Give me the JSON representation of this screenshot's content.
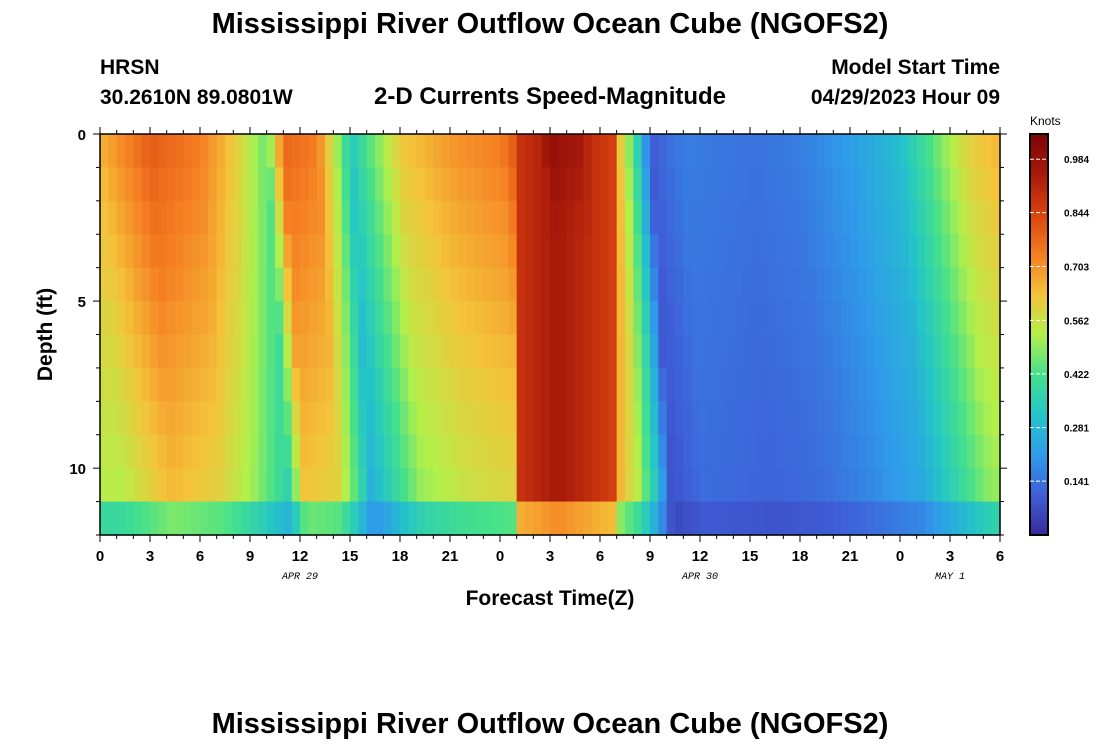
{
  "header": {
    "title": "Mississippi River Outflow Ocean Cube (NGOFS2)",
    "station_id": "HRSN",
    "station_coords": "30.2610N  89.0801W",
    "subtitle": "2-D Currents Speed-Magnitude",
    "start_label": "Model Start Time",
    "start_value": "04/29/2023 Hour 09"
  },
  "footer": {
    "title": "Mississippi River Outflow Ocean Cube (NGOFS2)"
  },
  "chart_data": {
    "type": "heatmap",
    "title": "2-D Currents Speed-Magnitude",
    "xlabel": "Forecast Time(Z)",
    "ylabel": "Depth (ft)",
    "x_range_hours": [
      0,
      54
    ],
    "y_range_ft": [
      0,
      12
    ],
    "x_tick_values": [
      0,
      3,
      6,
      9,
      12,
      15,
      18,
      21,
      24,
      27,
      30,
      33,
      36,
      39,
      42,
      45,
      48,
      51,
      54
    ],
    "x_tick_labels": [
      "0",
      "3",
      "6",
      "9",
      "12",
      "15",
      "18",
      "21",
      "0",
      "3",
      "6",
      "9",
      "12",
      "15",
      "18",
      "21",
      "0",
      "3",
      "6"
    ],
    "y_tick_values": [
      0,
      5,
      10
    ],
    "y_tick_labels": [
      "0",
      "5",
      "10"
    ],
    "date_labels": [
      {
        "hour": 12,
        "text": "APR 29"
      },
      {
        "hour": 36,
        "text": "APR 30"
      },
      {
        "hour": 51,
        "text": "MAY 1"
      }
    ],
    "colorbar": {
      "label": "Knots",
      "ticks": [
        "0.984",
        "0.844",
        "0.703",
        "0.562",
        "0.422",
        "0.281",
        "0.141"
      ],
      "tick_values": [
        0.984,
        0.844,
        0.703,
        0.562,
        0.422,
        0.281,
        0.141
      ],
      "vmin": 0.0,
      "vmax": 1.05,
      "colors": [
        "#3a2a9a",
        "#3f5fd8",
        "#2f9bea",
        "#24c5c8",
        "#44e08c",
        "#b3f04a",
        "#f4c33a",
        "#f57d22",
        "#d8430f",
        "#a8190b",
        "#7c0505"
      ]
    },
    "surface_profile_knots": [
      {
        "hour": 0,
        "knots": 0.66
      },
      {
        "hour": 3,
        "knots": 0.8
      },
      {
        "hour": 6,
        "knots": 0.74
      },
      {
        "hour": 8,
        "knots": 0.62
      },
      {
        "hour": 10,
        "knots": 0.45
      },
      {
        "hour": 11,
        "knots": 0.78
      },
      {
        "hour": 13,
        "knots": 0.74
      },
      {
        "hour": 14,
        "knots": 0.55
      },
      {
        "hour": 15,
        "knots": 0.33
      },
      {
        "hour": 18,
        "knots": 0.62
      },
      {
        "hour": 21,
        "knots": 0.7
      },
      {
        "hour": 24,
        "knots": 0.74
      },
      {
        "hour": 26,
        "knots": 0.9
      },
      {
        "hour": 27,
        "knots": 1.0
      },
      {
        "hour": 29,
        "knots": 0.95
      },
      {
        "hour": 30,
        "knots": 0.8
      },
      {
        "hour": 31,
        "knots": 0.66
      },
      {
        "hour": 32,
        "knots": 0.42
      },
      {
        "hour": 33,
        "knots": 0.1
      },
      {
        "hour": 35,
        "knots": 0.16
      },
      {
        "hour": 39,
        "knots": 0.14
      },
      {
        "hour": 42,
        "knots": 0.16
      },
      {
        "hour": 45,
        "knots": 0.22
      },
      {
        "hour": 48,
        "knots": 0.3
      },
      {
        "hour": 50,
        "knots": 0.45
      },
      {
        "hour": 52,
        "knots": 0.6
      },
      {
        "hour": 54,
        "knots": 0.66
      }
    ]
  }
}
